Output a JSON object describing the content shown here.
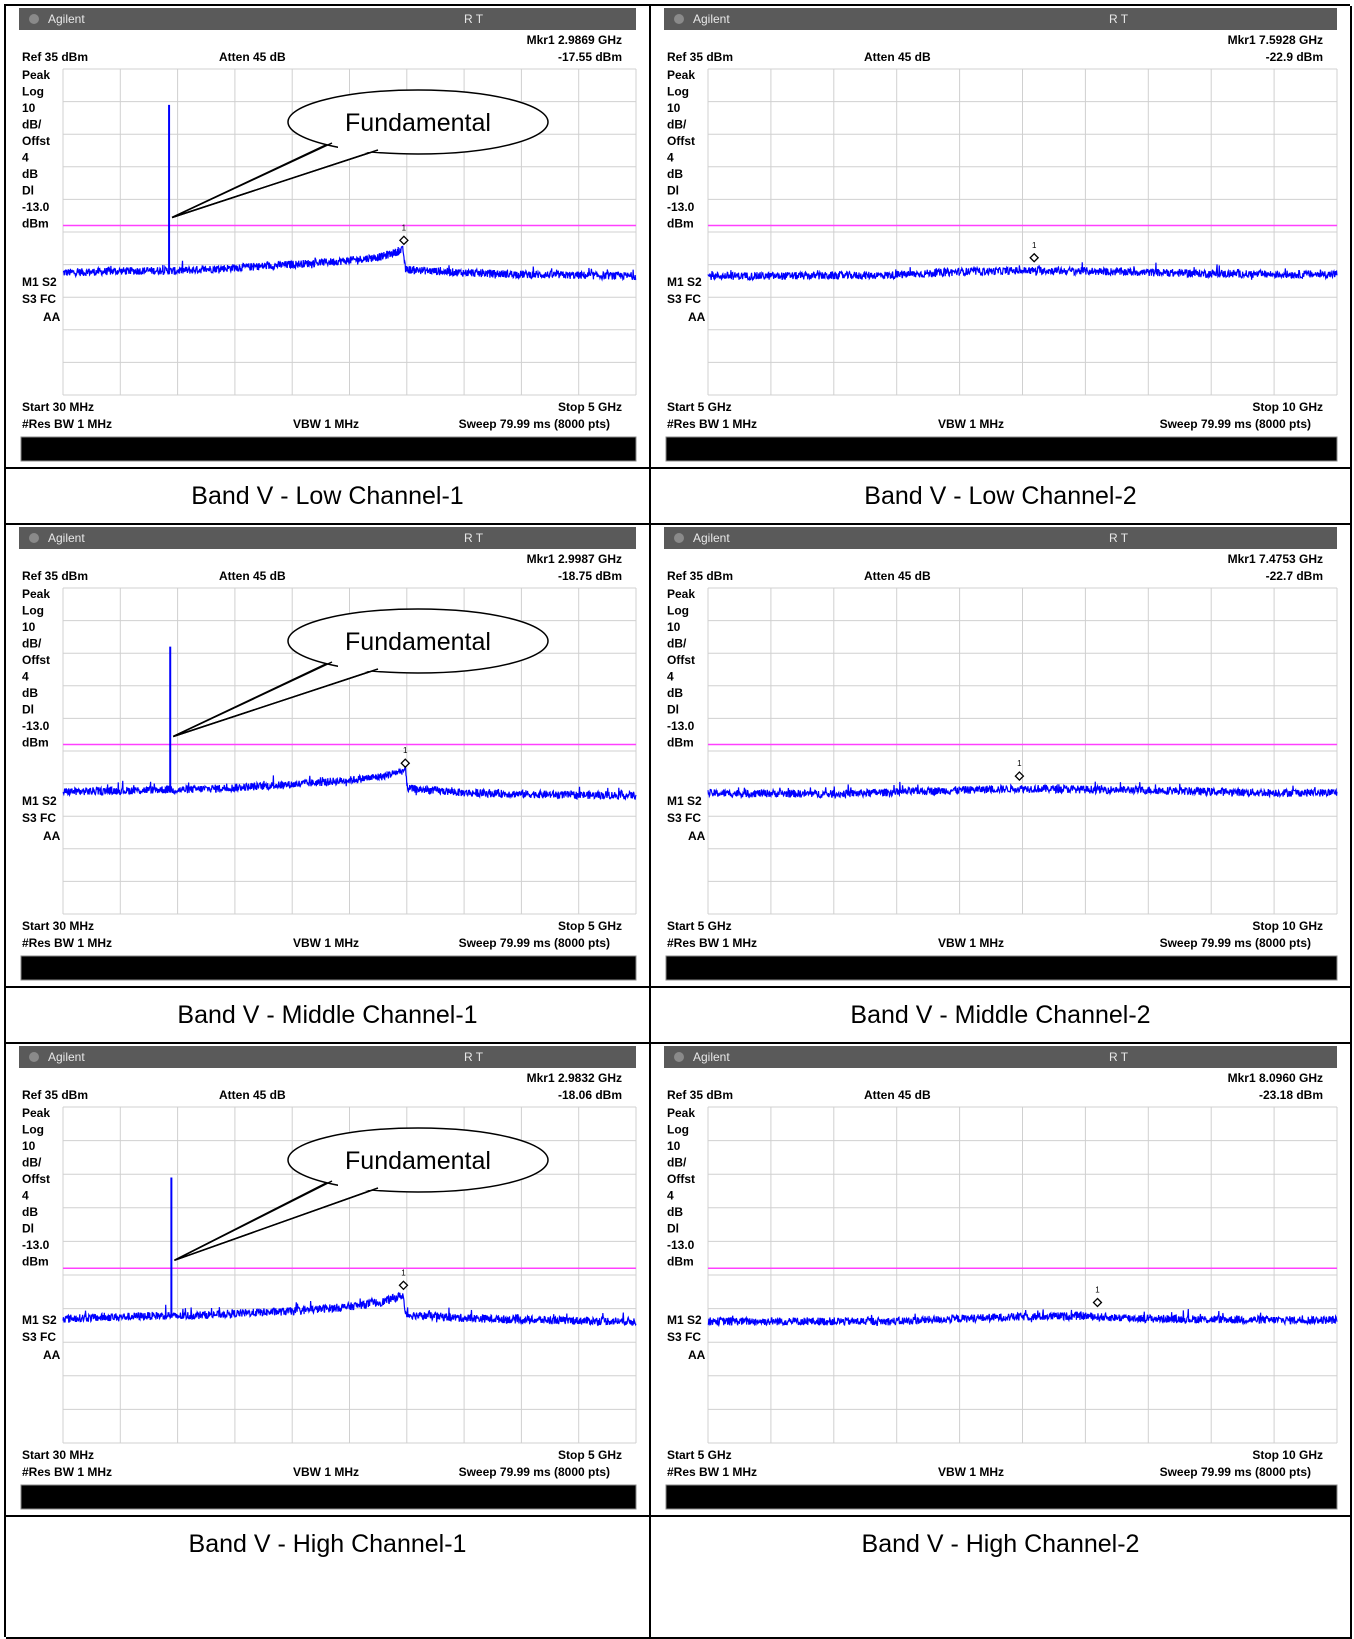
{
  "app_title": "Agilent",
  "status_flags": "R   T",
  "common": {
    "ref": "Ref 35 dBm",
    "atten": "Atten 45 dB",
    "side_labels": [
      "Peak",
      "Log",
      "10",
      "dB/",
      "Offst",
      "4",
      "dB",
      "Dl",
      "-13.0",
      "dBm"
    ],
    "mode_labels": [
      "M1  S2",
      "S3  FC",
      "AA"
    ],
    "rbw": "#Res BW 1 MHz",
    "vbw": "VBW 1 MHz",
    "sweep": "Sweep 79.99 ms (8000 pts)",
    "callout_text": "Fundamental"
  },
  "colors": {
    "trace": "#0000ff",
    "display_line": "#ff40ff",
    "grid": "#d0d0d0",
    "title_bar": "#5a5a5a",
    "status_bar": "#000000"
  },
  "panels": [
    {
      "caption": "Band V - Low Channel-1",
      "start": "Start 30 MHz",
      "stop": "Stop 5 GHz",
      "marker_freq": "Mkr1  2.9869 GHz",
      "marker_amp": "-17.55 dBm"
    },
    {
      "caption": "Band V - Low Channel-2",
      "start": "Start 5 GHz",
      "stop": "Stop 10 GHz",
      "marker_freq": "Mkr1  7.5928 GHz",
      "marker_amp": "-22.9 dBm"
    },
    {
      "caption": "Band V - Middle Channel-1",
      "start": "Start 30 MHz",
      "stop": "Stop 5 GHz",
      "marker_freq": "Mkr1  2.9987 GHz",
      "marker_amp": "-18.75 dBm"
    },
    {
      "caption": "Band V - Middle Channel-2",
      "start": "Start 5 GHz",
      "stop": "Stop 10 GHz",
      "marker_freq": "Mkr1  7.4753 GHz",
      "marker_amp": "-22.7 dBm"
    },
    {
      "caption": "Band V - High Channel-1",
      "start": "Start 30 MHz",
      "stop": "Stop 5 GHz",
      "marker_freq": "Mkr1  2.9832 GHz",
      "marker_amp": "-18.06 dBm"
    },
    {
      "caption": "Band V - High Channel-2",
      "start": "Start 5 GHz",
      "stop": "Stop 10 GHz",
      "marker_freq": "Mkr1  8.0960 GHz",
      "marker_amp": "-23.18 dBm"
    }
  ],
  "chart_data": [
    {
      "type": "line",
      "title": "Band V - Low Channel-1",
      "x_unit": "GHz",
      "y_unit": "dBm",
      "xlim": [
        0.03,
        5.0
      ],
      "ylim": [
        -65,
        35
      ],
      "y_div": 10,
      "display_line": -13.0,
      "fundamental": {
        "x": 0.95,
        "y": 24
      },
      "series": [
        {
          "x": [
            0.03,
            0.5,
            0.94,
            0.97,
            1.5,
            2.0,
            2.5,
            2.8,
            2.98,
            3.0,
            3.5,
            4.0,
            4.5,
            5.0
          ],
          "y": [
            -27.5,
            -27.0,
            -26.8,
            -27.0,
            -26.0,
            -25.0,
            -23.8,
            -22.5,
            -20.5,
            -26.5,
            -27.5,
            -28.0,
            -28.3,
            -28.5
          ]
        }
      ],
      "marker": {
        "x": 2.9869,
        "y": -17.55
      }
    },
    {
      "type": "line",
      "title": "Band V - Low Channel-2",
      "x_unit": "GHz",
      "y_unit": "dBm",
      "xlim": [
        5.0,
        10.0
      ],
      "ylim": [
        -65,
        35
      ],
      "y_div": 10,
      "display_line": -13.0,
      "series": [
        {
          "x": [
            5.0,
            5.5,
            6.0,
            6.5,
            7.0,
            7.6,
            8.0,
            8.5,
            9.0,
            9.5,
            10.0
          ],
          "y": [
            -28.5,
            -28.5,
            -28.4,
            -28.2,
            -27.2,
            -26.8,
            -27.0,
            -27.4,
            -27.8,
            -28.0,
            -28.0
          ]
        }
      ],
      "marker": {
        "x": 7.5928,
        "y": -22.9
      }
    },
    {
      "type": "line",
      "title": "Band V - Middle Channel-1",
      "x_unit": "GHz",
      "y_unit": "dBm",
      "xlim": [
        0.03,
        5.0
      ],
      "ylim": [
        -65,
        35
      ],
      "y_div": 10,
      "display_line": -13.0,
      "fundamental": {
        "x": 0.96,
        "y": 17
      },
      "series": [
        {
          "x": [
            0.03,
            0.5,
            0.95,
            0.98,
            1.5,
            2.0,
            2.5,
            2.8,
            3.0,
            3.02,
            3.5,
            4.0,
            4.5,
            5.0
          ],
          "y": [
            -27.5,
            -27.2,
            -26.8,
            -27.0,
            -26.3,
            -25.3,
            -24.0,
            -22.8,
            -20.8,
            -26.5,
            -27.8,
            -28.2,
            -28.5,
            -28.6
          ]
        }
      ],
      "marker": {
        "x": 2.9987,
        "y": -18.75
      }
    },
    {
      "type": "line",
      "title": "Band V - Middle Channel-2",
      "x_unit": "GHz",
      "y_unit": "dBm",
      "xlim": [
        5.0,
        10.0
      ],
      "ylim": [
        -65,
        35
      ],
      "y_div": 10,
      "display_line": -13.0,
      "series": [
        {
          "x": [
            5.0,
            5.5,
            6.0,
            6.5,
            7.0,
            7.5,
            8.0,
            8.5,
            9.0,
            9.5,
            10.0
          ],
          "y": [
            -28.0,
            -28.0,
            -28.2,
            -27.6,
            -27.0,
            -26.5,
            -26.8,
            -27.0,
            -27.5,
            -27.8,
            -27.8
          ]
        }
      ],
      "marker": {
        "x": 7.4753,
        "y": -22.7
      }
    },
    {
      "type": "line",
      "title": "Band V - High Channel-1",
      "x_unit": "GHz",
      "y_unit": "dBm",
      "xlim": [
        0.03,
        5.0
      ],
      "ylim": [
        -65,
        35
      ],
      "y_div": 10,
      "display_line": -13.0,
      "fundamental": {
        "x": 0.97,
        "y": 14
      },
      "series": [
        {
          "x": [
            0.03,
            0.5,
            0.96,
            0.99,
            1.5,
            2.0,
            2.5,
            2.8,
            2.98,
            3.0,
            3.5,
            4.0,
            4.5,
            5.0
          ],
          "y": [
            -28.0,
            -27.5,
            -27.0,
            -27.3,
            -26.5,
            -25.8,
            -24.5,
            -23.0,
            -21.0,
            -26.8,
            -27.8,
            -28.3,
            -28.6,
            -28.8
          ]
        }
      ],
      "marker": {
        "x": 2.9832,
        "y": -18.06
      }
    },
    {
      "type": "line",
      "title": "Band V - High Channel-2",
      "x_unit": "GHz",
      "y_unit": "dBm",
      "xlim": [
        5.0,
        10.0
      ],
      "ylim": [
        -65,
        35
      ],
      "y_div": 10,
      "display_line": -13.0,
      "series": [
        {
          "x": [
            5.0,
            5.5,
            6.0,
            6.5,
            7.0,
            7.5,
            8.0,
            8.1,
            8.5,
            9.0,
            9.5,
            10.0
          ],
          "y": [
            -28.8,
            -28.8,
            -28.8,
            -28.8,
            -28.0,
            -27.4,
            -27.2,
            -27.5,
            -28.0,
            -28.2,
            -28.4,
            -28.4
          ]
        }
      ],
      "marker": {
        "x": 8.096,
        "y": -23.18
      }
    }
  ]
}
